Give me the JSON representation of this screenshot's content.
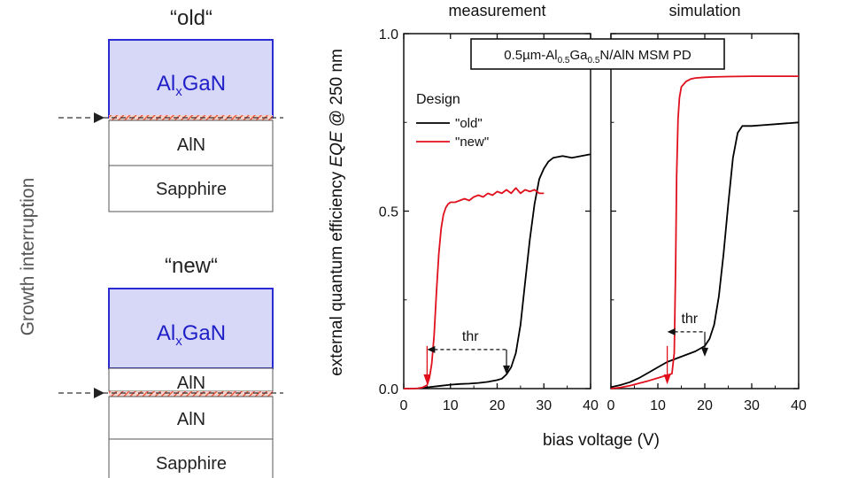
{
  "left_panel": {
    "side_label": "Growth interruption",
    "old_stack": {
      "title": "“old“",
      "layers": [
        {
          "label": "Al",
          "sub": "x",
          "rest": "GaN"
        },
        {
          "label": "AlN"
        },
        {
          "label": "Sapphire"
        }
      ]
    },
    "new_stack": {
      "title": "“new“",
      "layers": [
        {
          "label": "Al",
          "sub": "x",
          "rest": "GaN"
        },
        {
          "label": "AlN"
        },
        {
          "label": "AlN"
        },
        {
          "label": "Sapphire"
        }
      ]
    },
    "colors": {
      "algan_fill": "#d7d7f7",
      "algan_edge": "#2b2bd6",
      "algan_text": "#1f1fc8",
      "interface": "#e8482e"
    }
  },
  "chart_data": {
    "type": "line",
    "ylabel_parts": [
      "external quantum efficiency ",
      "EQE",
      " @ 250 nm"
    ],
    "xlabel": "bias voltage (V)",
    "ylim": [
      0.0,
      1.0
    ],
    "yticks": [
      "0.0",
      "0.5",
      "1.0"
    ],
    "yticks_values": [
      0.0,
      0.5,
      1.0
    ],
    "annotation_box": {
      "pre": "0.5µm-Al",
      "sub1": "0.5",
      "mid": "Ga",
      "sub2": "0.5",
      "post": "N/AlN MSM PD"
    },
    "legend": {
      "title": "Design",
      "entries": [
        "\"old\"",
        "\"new\""
      ],
      "placement": "upper-left"
    },
    "colors": {
      "old": "#000000",
      "new": "#e0101c"
    },
    "panels": [
      {
        "title": "measurement",
        "xlim": [
          0,
          40
        ],
        "xticks": [
          "0",
          "10",
          "20",
          "30",
          "40"
        ],
        "xticks_values": [
          0,
          10,
          20,
          30,
          40
        ],
        "thr_label": "thr",
        "thr_range": [
          5,
          22
        ],
        "thr_y": 0.11,
        "markers": [
          {
            "x": 5,
            "color": "red"
          },
          {
            "x": 22,
            "color": "black"
          }
        ],
        "series": [
          {
            "name": "\"old\"",
            "x": [
              4,
              6,
              8,
              10,
              12,
              14,
              16,
              18,
              20,
              21,
              22,
              23,
              24,
              25,
              26,
              27,
              28,
              29,
              30,
              31,
              32,
              34,
              36,
              38,
              40
            ],
            "y": [
              0.002,
              0.005,
              0.008,
              0.011,
              0.013,
              0.014,
              0.016,
              0.019,
              0.024,
              0.028,
              0.04,
              0.06,
              0.1,
              0.18,
              0.3,
              0.42,
              0.52,
              0.59,
              0.62,
              0.64,
              0.65,
              0.655,
              0.65,
              0.655,
              0.66
            ]
          },
          {
            "name": "\"new\"",
            "x": [
              0,
              2,
              3,
              4,
              5,
              5.5,
              6,
              6.5,
              7,
              7.5,
              8,
              8.5,
              9,
              9.5,
              10,
              11,
              12,
              13,
              14,
              15,
              16,
              17,
              18,
              19,
              20,
              21,
              22,
              23,
              24,
              25,
              26,
              27,
              28,
              29,
              30
            ],
            "y": [
              0,
              0,
              0.001,
              0.003,
              0.01,
              0.03,
              0.07,
              0.15,
              0.27,
              0.38,
              0.45,
              0.49,
              0.51,
              0.52,
              0.525,
              0.525,
              0.53,
              0.535,
              0.53,
              0.54,
              0.545,
              0.54,
              0.55,
              0.545,
              0.555,
              0.55,
              0.56,
              0.55,
              0.565,
              0.55,
              0.56,
              0.555,
              0.56,
              0.55,
              0.55
            ]
          }
        ]
      },
      {
        "title": "simulation",
        "xlim": [
          0,
          40
        ],
        "xticks": [
          "0",
          "10",
          "20",
          "30",
          "40"
        ],
        "xticks_values": [
          0,
          10,
          20,
          30,
          40
        ],
        "thr_label": "thr",
        "thr_range": [
          12,
          20
        ],
        "thr_y": 0.16,
        "markers": [
          {
            "x": 12,
            "color": "red"
          },
          {
            "x": 20,
            "color": "black"
          }
        ],
        "series": [
          {
            "name": "\"old\"",
            "x": [
              0,
              2,
              4,
              6,
              8,
              10,
              12,
              14,
              16,
              18,
              20,
              21,
              22,
              23,
              24,
              25,
              26,
              27,
              28,
              30,
              32,
              35,
              38,
              40
            ],
            "y": [
              0.004,
              0.01,
              0.018,
              0.03,
              0.045,
              0.06,
              0.075,
              0.085,
              0.095,
              0.105,
              0.12,
              0.14,
              0.18,
              0.26,
              0.38,
              0.52,
              0.65,
              0.72,
              0.74,
              0.74,
              0.742,
              0.745,
              0.748,
              0.75
            ]
          },
          {
            "name": "\"new\"",
            "x": [
              0,
              2,
              4,
              6,
              8,
              10,
              11,
              12,
              13,
              13.5,
              13.8,
              14,
              14.3,
              14.6,
              15,
              16,
              17,
              18,
              20,
              22,
              25,
              30,
              35,
              40
            ],
            "y": [
              0,
              0.003,
              0.008,
              0.015,
              0.022,
              0.03,
              0.034,
              0.038,
              0.042,
              0.1,
              0.35,
              0.6,
              0.76,
              0.82,
              0.85,
              0.865,
              0.872,
              0.875,
              0.877,
              0.878,
              0.879,
              0.88,
              0.88,
              0.88
            ]
          }
        ]
      }
    ]
  }
}
